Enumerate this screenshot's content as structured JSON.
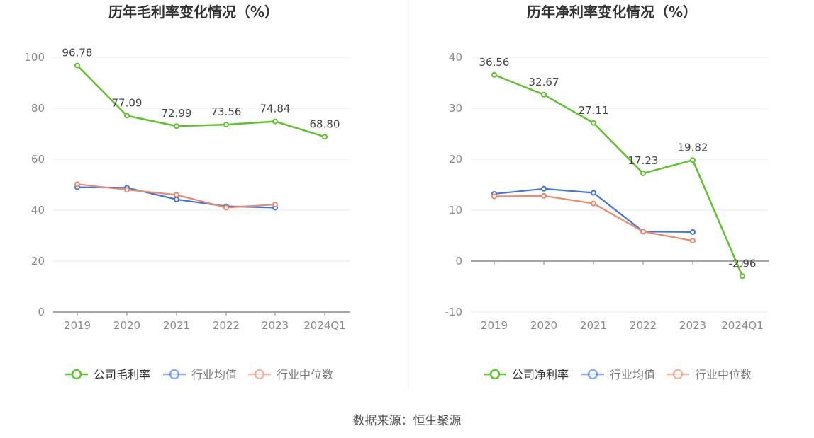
{
  "source": "数据来源：恒生聚源",
  "chart_data": [
    {
      "type": "line",
      "title": "历年毛利率变化情况（%）",
      "categories": [
        "2019",
        "2020",
        "2021",
        "2022",
        "2023",
        "2024Q1"
      ],
      "ylim": [
        0,
        100
      ],
      "yticks": [
        0,
        20,
        40,
        60,
        80,
        100
      ],
      "grid": true,
      "legend_position": "bottom",
      "series": [
        {
          "name": "公司毛利率",
          "color": "#5cc528",
          "values": [
            96.78,
            77.09,
            72.99,
            73.56,
            74.84,
            68.8
          ],
          "labels": [
            "96.78",
            "77.09",
            "72.99",
            "73.56",
            "74.84",
            "68.80"
          ]
        },
        {
          "name": "行业均值",
          "color": "#3f74e6",
          "values": [
            49.0,
            48.8,
            44.2,
            41.5,
            41.0,
            null
          ]
        },
        {
          "name": "行业中位数",
          "color": "#f0886a",
          "values": [
            50.2,
            48.0,
            46.0,
            41.0,
            42.2,
            null
          ]
        }
      ]
    },
    {
      "type": "line",
      "title": "历年净利率变化情况（%）",
      "categories": [
        "2019",
        "2020",
        "2021",
        "2022",
        "2023",
        "2024Q1"
      ],
      "ylim": [
        -10,
        40
      ],
      "yticks": [
        -10,
        0,
        10,
        20,
        30,
        40
      ],
      "grid": true,
      "legend_position": "bottom",
      "series": [
        {
          "name": "公司净利率",
          "color": "#5cc528",
          "values": [
            36.56,
            32.67,
            27.11,
            17.23,
            19.82,
            -2.96
          ],
          "labels": [
            "36.56",
            "32.67",
            "27.11",
            "17.23",
            "19.82",
            "-2.96"
          ]
        },
        {
          "name": "行业均值",
          "color": "#3f74e6",
          "values": [
            13.2,
            14.2,
            13.4,
            5.8,
            5.7,
            null
          ]
        },
        {
          "name": "行业中位数",
          "color": "#f0886a",
          "values": [
            12.7,
            12.8,
            11.3,
            5.8,
            4.0,
            null
          ]
        }
      ]
    }
  ]
}
